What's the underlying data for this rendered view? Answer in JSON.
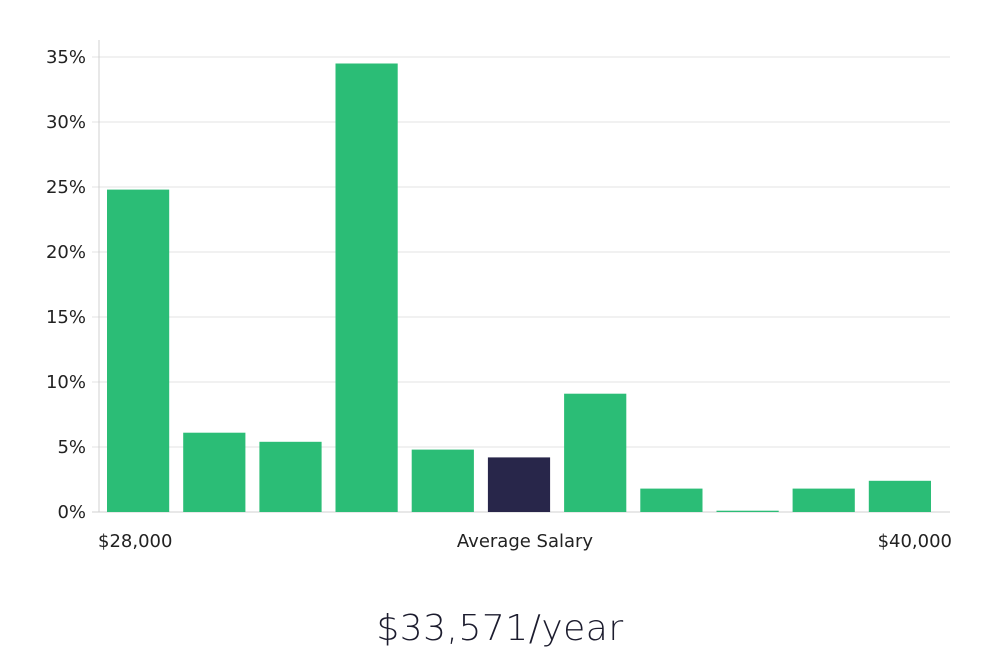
{
  "chart_data": {
    "type": "bar",
    "values": [
      24.8,
      6.1,
      5.4,
      34.5,
      4.8,
      4.2,
      9.1,
      1.8,
      0.1,
      1.8,
      2.4
    ],
    "highlight_index": 5,
    "y_ticks": [
      "0%",
      "5%",
      "10%",
      "15%",
      "20%",
      "25%",
      "30%",
      "35%"
    ],
    "ylim": [
      0,
      35
    ],
    "x_left_label": "$28,000",
    "xlabel": "Average Salary",
    "x_right_label": "$40,000",
    "grid": true,
    "colors": {
      "bar": "#2bbd76",
      "highlight": "#28264a",
      "grid": "#e3e3e3",
      "axis": "#d0d0d0"
    }
  },
  "summary": {
    "salary": "$33,571/year"
  }
}
